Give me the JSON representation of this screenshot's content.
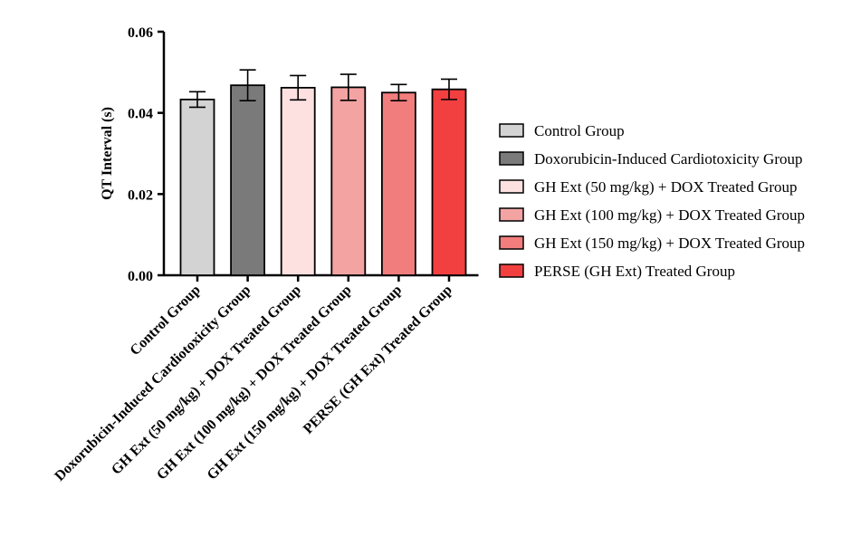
{
  "chart_data": {
    "type": "bar",
    "title": "",
    "xlabel": "",
    "ylabel": "QT Interval (s)",
    "ylim": [
      0,
      0.06
    ],
    "yticks": [
      "0.00",
      "0.02",
      "0.04",
      "0.06"
    ],
    "grid": false,
    "legend_position": "right",
    "categories": [
      "Control Group",
      "Doxorubicin-Induced Cardiotoxicity Group",
      "GH Ext (50 mg/kg) + DOX Treated Group",
      "GH Ext (100 mg/kg) + DOX Treated Group",
      "GH Ext (150 mg/kg) + DOX Treated Group",
      "PERSE (GH Ext) Treated Group"
    ],
    "values": [
      0.0433,
      0.0468,
      0.0462,
      0.0463,
      0.045,
      0.0458
    ],
    "errors": [
      0.0019,
      0.0038,
      0.003,
      0.0032,
      0.002,
      0.0025
    ],
    "colors": [
      "#d3d3d3",
      "#7a7a7a",
      "#fde0e0",
      "#f4a3a3",
      "#f27d7d",
      "#f23f3f"
    ],
    "legend": [
      "Control Group",
      "Doxorubicin-Induced Cardiotoxicity Group",
      "GH Ext (50 mg/kg) + DOX Treated Group",
      "GH Ext (100 mg/kg) + DOX Treated Group",
      "GH Ext (150 mg/kg) + DOX Treated Group",
      "PERSE (GH Ext) Treated Group"
    ]
  }
}
